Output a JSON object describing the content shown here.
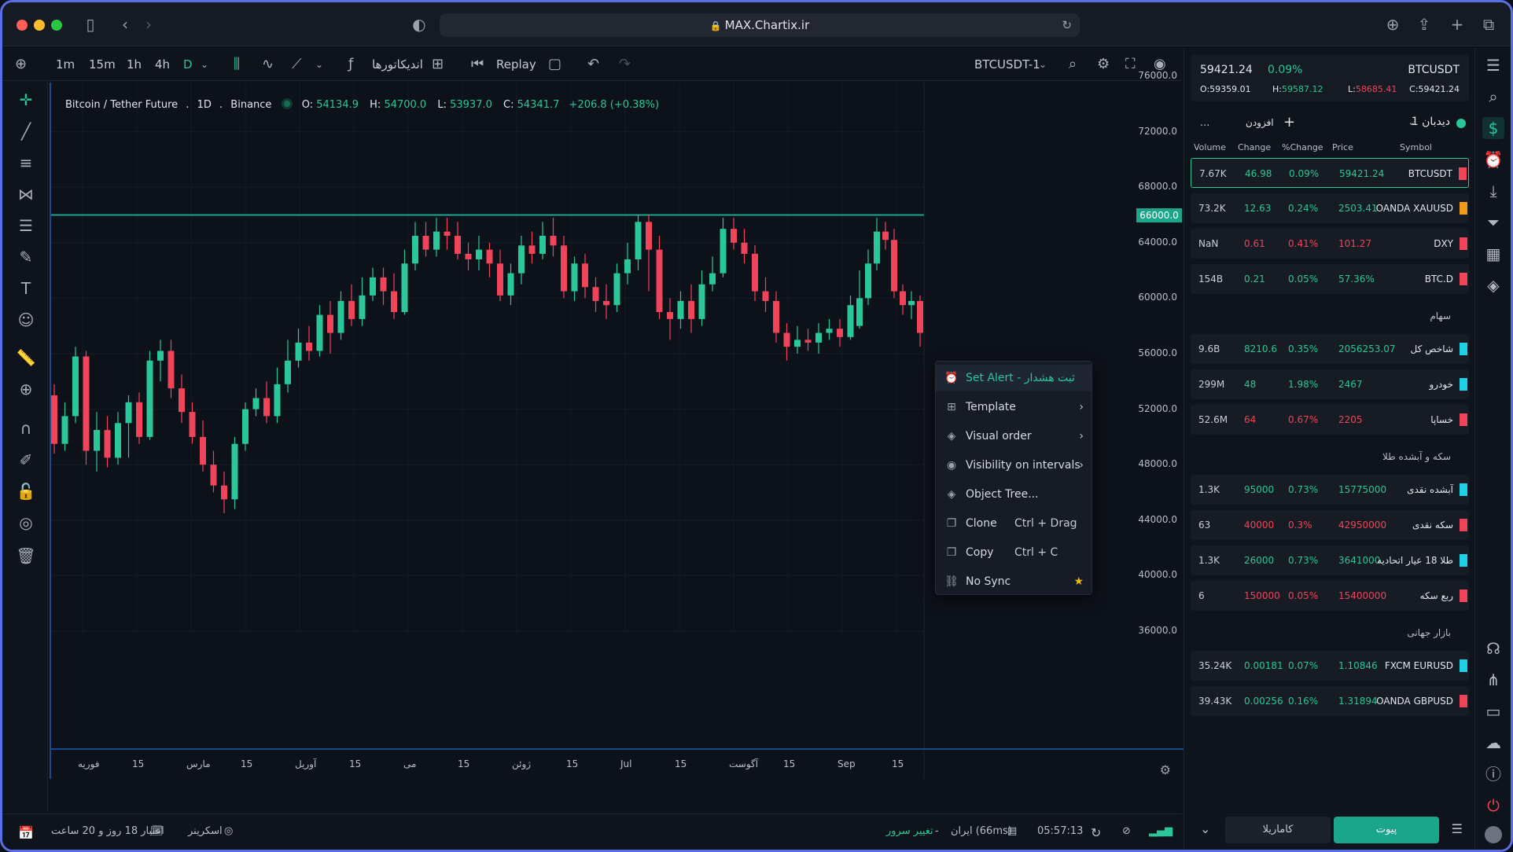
{
  "browser": {
    "url": "MAX.Chartix.ir",
    "lock_icon": "lock-icon"
  },
  "toolbar": {
    "intervals": [
      "1m",
      "15m",
      "1h",
      "4h",
      "D"
    ],
    "active_interval": "D",
    "indicators_label": "اندیکاتورها",
    "replay_label": "Replay",
    "symbol": "BTCUSDT-1"
  },
  "legend": {
    "name": "Bitcoin / Tether Future",
    "sep1": ".",
    "interval": "1D",
    "sep2": ".",
    "exchange": "Binance",
    "o_label": "O:",
    "o": "54134.9",
    "h_label": "H:",
    "h": "54700.0",
    "l_label": "L:",
    "l": "53937.0",
    "c_label": "C:",
    "c": "54341.7",
    "change": "+206.8 (+0.38%)"
  },
  "yaxis": [
    "76000.0",
    "72000.0",
    "68000.0",
    "64000.0",
    "60000.0",
    "56000.0",
    "52000.0",
    "48000.0",
    "44000.0",
    "40000.0",
    "36000.0"
  ],
  "price_line": "66000.0",
  "xaxis": [
    "فوریه",
    "15",
    "مارس",
    "15",
    "آوریل",
    "15",
    "می",
    "15",
    "ژوئن",
    "15",
    "Jul",
    "15",
    "آگوست",
    "15",
    "Sep",
    "15"
  ],
  "context_menu": {
    "items": [
      {
        "label": "Set Alert - ثبت هشدار",
        "icon": "alarm-icon",
        "shortcut": "",
        "has_arrow": false
      },
      {
        "label": "Template",
        "icon": "grid-icon",
        "shortcut": "",
        "has_arrow": true
      },
      {
        "label": "Visual order",
        "icon": "layers-icon",
        "shortcut": "",
        "has_arrow": true
      },
      {
        "label": "Visibility on intervals",
        "icon": "eye-icon",
        "shortcut": "",
        "has_arrow": true
      },
      {
        "label": "Object Tree...",
        "icon": "tree-icon",
        "shortcut": "",
        "has_arrow": false
      },
      {
        "label": "Clone",
        "icon": "clone-icon",
        "shortcut": "Ctrl + Drag",
        "has_arrow": false
      },
      {
        "label": "Copy",
        "icon": "copy-icon",
        "shortcut": "Ctrl + C",
        "has_arrow": false
      },
      {
        "label": "No Sync",
        "icon": "link-icon",
        "shortcut": "",
        "has_arrow": false,
        "star": true
      }
    ]
  },
  "bottombar": {
    "credit": "اعتبار 18 روز و 20 ساعت",
    "screener": "اسکرینر",
    "server_change": "تغییر سرور",
    "dash": "-",
    "server": "ایران (66ms)",
    "time": "05:57:13"
  },
  "ticker": {
    "price": "59421.24",
    "pct": "0.09%",
    "symbol": "BTCUSDT",
    "o": "O:59359.01",
    "h_label": "H:",
    "h": "59587.12",
    "l_label": "L:",
    "l": "58685.41",
    "c": "C:59421.24"
  },
  "watchlist": {
    "title": "دیدبان 1",
    "add_label": "افزودن",
    "more": "...",
    "columns": {
      "volume": "Volume",
      "change": "Change",
      "pct": "%Change",
      "price": "Price",
      "symbol": "Symbol"
    },
    "rows": [
      {
        "volume": "7.67K",
        "change": "46.98",
        "pct": "0.09%",
        "price": "59421.24",
        "symbol": "BTCUSDT",
        "dir": "up",
        "flag": "#f0445a"
      },
      {
        "volume": "73.2K",
        "change": "12.63",
        "pct": "0.24%",
        "price": "2503.41",
        "symbol": "OANDA XAUUSD",
        "dir": "up",
        "flag": "#f09a1a"
      },
      {
        "volume": "NaN",
        "change": "0.61",
        "pct": "0.41%",
        "price": "101.27",
        "symbol": "DXY",
        "dir": "down",
        "flag": "#f0445a"
      },
      {
        "volume": "154B",
        "change": "0.21",
        "pct": "0.05%",
        "price": "57.36%",
        "symbol": "BTC.D",
        "dir": "up",
        "flag": "#f0445a"
      },
      {
        "section": "سهام"
      },
      {
        "volume": "9.6B",
        "change": "8210.6",
        "pct": "0.35%",
        "price": "2056253.07",
        "symbol": "شاخص کل",
        "dir": "up",
        "flag": "#1fd1e8"
      },
      {
        "volume": "299M",
        "change": "48",
        "pct": "1.98%",
        "price": "2467",
        "symbol": "خودرو",
        "dir": "up",
        "flag": "#1fd1e8"
      },
      {
        "volume": "52.6M",
        "change": "64",
        "pct": "0.67%",
        "price": "2205",
        "symbol": "خساپا",
        "dir": "down",
        "flag": "#f0445a"
      },
      {
        "section": "سکه و آبشده طلا"
      },
      {
        "volume": "1.3K",
        "change": "95000",
        "pct": "0.73%",
        "price": "15775000",
        "symbol": "آبشده نقدی",
        "dir": "up",
        "flag": "#1fd1e8"
      },
      {
        "volume": "63",
        "change": "40000",
        "pct": "0.3%",
        "price": "42950000",
        "symbol": "سکه نقدی",
        "dir": "down",
        "flag": "#f0445a"
      },
      {
        "volume": "1.3K",
        "change": "26000",
        "pct": "0.73%",
        "price": "3641000",
        "symbol": "طلا 18 عیار اتحادیه",
        "dir": "up",
        "flag": "#1fd1e8"
      },
      {
        "volume": "6",
        "change": "150000",
        "pct": "0.05%",
        "price": "15400000",
        "symbol": "ربع سکه",
        "dir": "down",
        "flag": "#f0445a"
      },
      {
        "section": "بازار جهانی"
      },
      {
        "volume": "35.24K",
        "change": "0.00181",
        "pct": "0.07%",
        "price": "1.10846",
        "symbol": "FXCM EURUSD",
        "dir": "up",
        "flag": "#1fd1e8"
      },
      {
        "volume": "39.43K",
        "change": "0.00256",
        "pct": "0.16%",
        "price": "1.31894",
        "symbol": "OANDA GBPUSD",
        "dir": "up",
        "flag": "#f0445a"
      }
    ],
    "btn_join": "پیوت",
    "btn_karamrila": "کاماریلا"
  },
  "colors": {
    "up": "#29c79a",
    "down": "#f0445a",
    "accent": "#1ba58a"
  },
  "chart_data": {
    "type": "candlestick",
    "title": "Bitcoin / Tether Future . 1D . Binance",
    "ylim": [
      36000,
      76000
    ],
    "horizontal_line": 66000,
    "candles": [
      [
        53000,
        49500,
        53800,
        48800
      ],
      [
        49500,
        51500,
        52500,
        49000
      ],
      [
        51500,
        55800,
        56500,
        51000
      ],
      [
        55800,
        49000,
        56200,
        48000
      ],
      [
        49000,
        50500,
        51800,
        47500
      ],
      [
        50500,
        48500,
        51500,
        47800
      ],
      [
        48500,
        51000,
        51800,
        48000
      ],
      [
        51000,
        52500,
        53000,
        48500
      ],
      [
        52500,
        50000,
        53200,
        49500
      ],
      [
        50000,
        55500,
        56200,
        49800
      ],
      [
        55500,
        56200,
        57000,
        54000
      ],
      [
        56200,
        53500,
        57000,
        52800
      ],
      [
        53500,
        51800,
        54500,
        51000
      ],
      [
        51800,
        50000,
        52500,
        49500
      ],
      [
        50000,
        48000,
        51200,
        47500
      ],
      [
        48000,
        46500,
        49000,
        46000
      ],
      [
        46500,
        45500,
        47500,
        44500
      ],
      [
        45500,
        49500,
        50000,
        44800
      ],
      [
        49500,
        52000,
        52500,
        49000
      ],
      [
        52000,
        52800,
        53500,
        51500
      ],
      [
        52800,
        51500,
        54000,
        51000
      ],
      [
        51500,
        53800,
        55000,
        51000
      ],
      [
        53800,
        55500,
        57000,
        53200
      ],
      [
        55500,
        56800,
        57800,
        55000
      ],
      [
        56800,
        56200,
        58000,
        55500
      ],
      [
        56200,
        58800,
        59500,
        55800
      ],
      [
        58800,
        57500,
        59800,
        56000
      ],
      [
        57500,
        59800,
        60500,
        57000
      ],
      [
        59800,
        58500,
        61000,
        58000
      ],
      [
        58500,
        60200,
        61500,
        58000
      ],
      [
        60200,
        61500,
        62200,
        59800
      ],
      [
        61500,
        60500,
        62200,
        59500
      ],
      [
        60500,
        59000,
        61800,
        58500
      ],
      [
        59000,
        62500,
        63500,
        58800
      ],
      [
        62500,
        64500,
        65500,
        62000
      ],
      [
        64500,
        63500,
        65500,
        63000
      ],
      [
        63500,
        64800,
        65800,
        63000
      ],
      [
        64800,
        64500,
        65800,
        63500
      ],
      [
        64500,
        63200,
        65500,
        62800
      ],
      [
        63200,
        62800,
        64000,
        62000
      ],
      [
        62800,
        63500,
        64500,
        62000
      ],
      [
        63500,
        62500,
        64000,
        61500
      ],
      [
        62500,
        60200,
        63500,
        59800
      ],
      [
        60200,
        61800,
        62500,
        59500
      ],
      [
        61800,
        63800,
        64500,
        61000
      ],
      [
        63800,
        63200,
        64800,
        62500
      ],
      [
        63200,
        64500,
        65500,
        62800
      ],
      [
        64500,
        63800,
        65800,
        63000
      ],
      [
        63800,
        60500,
        64500,
        60000
      ],
      [
        60500,
        62500,
        63000,
        59800
      ],
      [
        62500,
        60800,
        63200,
        60000
      ],
      [
        60800,
        59800,
        61500,
        59000
      ],
      [
        59800,
        59500,
        61000,
        58500
      ],
      [
        59500,
        61800,
        62500,
        59000
      ],
      [
        61800,
        62800,
        64000,
        61000
      ],
      [
        62800,
        65500,
        66000,
        62000
      ],
      [
        65500,
        63500,
        66000,
        60500
      ],
      [
        63500,
        59000,
        64500,
        58500
      ],
      [
        59000,
        58500,
        60000,
        57000
      ],
      [
        58500,
        59800,
        60500,
        57800
      ],
      [
        59800,
        58500,
        61000,
        57500
      ],
      [
        58500,
        61000,
        62000,
        58000
      ],
      [
        61000,
        61800,
        63000,
        60500
      ],
      [
        61800,
        65000,
        65800,
        61500
      ],
      [
        65000,
        64000,
        65800,
        63500
      ],
      [
        64000,
        63200,
        65000,
        62500
      ],
      [
        63200,
        60500,
        63800,
        59800
      ],
      [
        60500,
        59800,
        61500,
        59000
      ],
      [
        59800,
        57500,
        60500,
        56800
      ],
      [
        57500,
        56500,
        58200,
        55500
      ],
      [
        56500,
        57000,
        58000,
        56000
      ],
      [
        57000,
        56800,
        57800,
        56200
      ],
      [
        56800,
        57500,
        58200,
        56000
      ],
      [
        57500,
        57800,
        58500,
        57000
      ],
      [
        57800,
        57200,
        58500,
        56500
      ],
      [
        57200,
        59500,
        60200,
        57000
      ]
    ],
    "candles_right": [
      [
        58000,
        60000,
        62000,
        57800
      ],
      [
        60000,
        62500,
        63500,
        59500
      ],
      [
        62500,
        64800,
        65800,
        62000
      ],
      [
        64800,
        64200,
        65500,
        63500
      ],
      [
        64200,
        60500,
        65000,
        60000
      ],
      [
        60500,
        59500,
        61000,
        58800
      ],
      [
        59500,
        59800,
        60500,
        58500
      ],
      [
        59800,
        57500,
        60200,
        56500
      ]
    ]
  }
}
